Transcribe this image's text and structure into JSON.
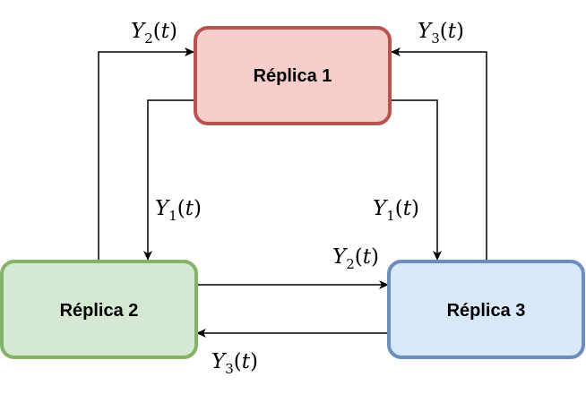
{
  "nodes": {
    "replica1": {
      "label": "Réplica 1",
      "fill": "#f8cecc",
      "stroke": "#b85450"
    },
    "replica2": {
      "label": "Réplica 2",
      "fill": "#d5e8d4",
      "stroke": "#82b366"
    },
    "replica3": {
      "label": "Réplica 3",
      "fill": "#dae8fc",
      "stroke": "#6c8ebf"
    }
  },
  "edges": {
    "r2_to_r1": {
      "var": "Y",
      "sub": "2",
      "arg": "t"
    },
    "r3_to_r1": {
      "var": "Y",
      "sub": "3",
      "arg": "t"
    },
    "r1_to_r2": {
      "var": "Y",
      "sub": "1",
      "arg": "t"
    },
    "r1_to_r3": {
      "var": "Y",
      "sub": "1",
      "arg": "t"
    },
    "r2_to_r3": {
      "var": "Y",
      "sub": "2",
      "arg": "t"
    },
    "r3_to_r2": {
      "var": "Y",
      "sub": "3",
      "arg": "t"
    }
  },
  "colors": {
    "edge": "#000000"
  }
}
